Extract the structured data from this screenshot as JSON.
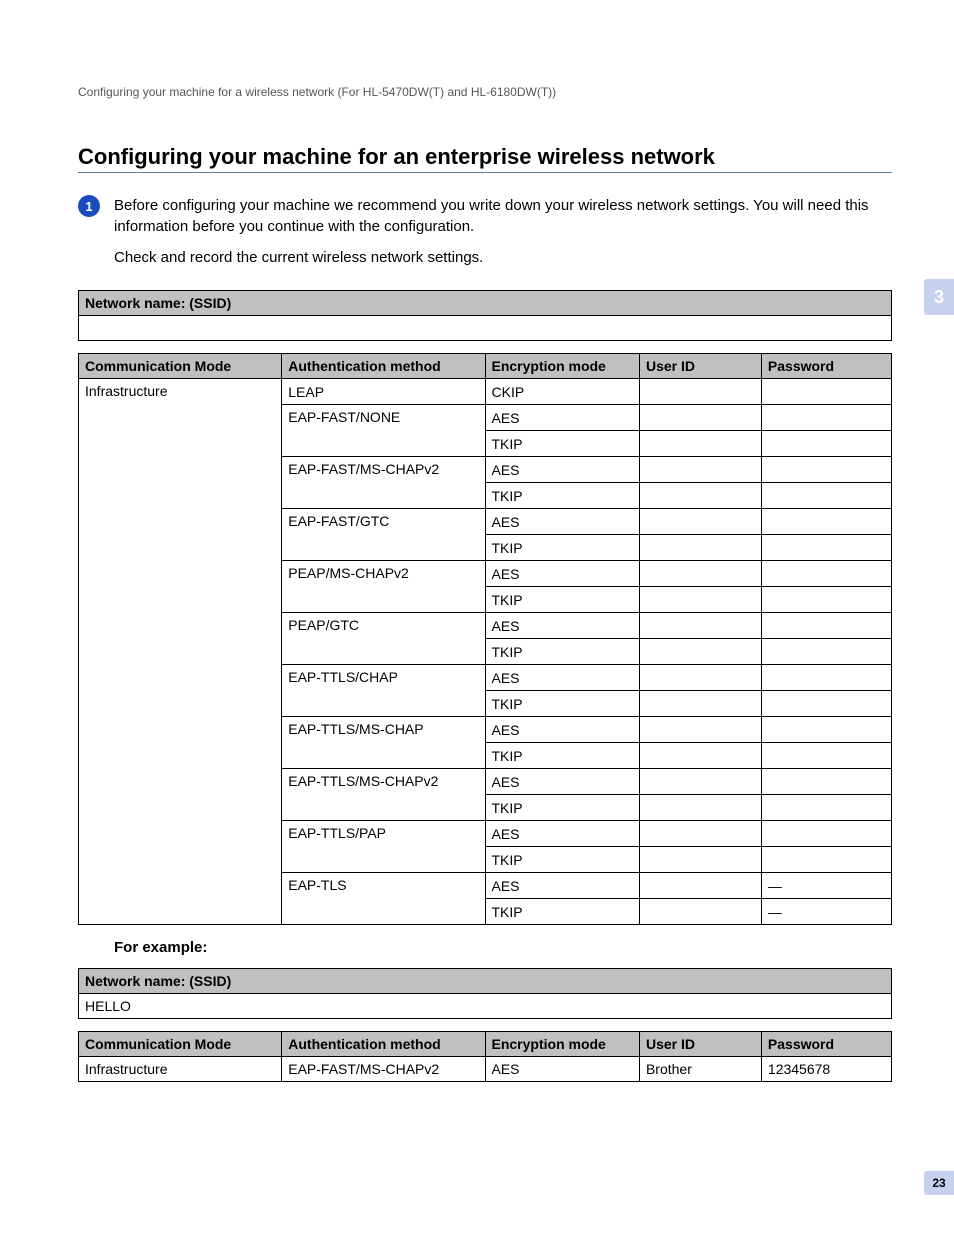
{
  "header_text": "Configuring your machine for a wireless network (For HL-5470DW(T) and HL-6180DW(T))",
  "heading": "Configuring your machine for an enterprise wireless network",
  "step_number": "1",
  "step_para1": "Before configuring your machine we recommend you write down your wireless network settings. You will need this information before you continue with the configuration.",
  "step_para2": "Check and record the current wireless network settings.",
  "ssid_label": "Network name: (SSID)",
  "cols": {
    "c1": "Communication Mode",
    "c2": "Authentication method",
    "c3": "Encryption mode",
    "c4": "User ID",
    "c5": "Password"
  },
  "comm_mode": "Infrastructure",
  "auth": {
    "leap": "LEAP",
    "eap_fast_none": "EAP-FAST/NONE",
    "eap_fast_mschapv2": "EAP-FAST/MS-CHAPv2",
    "eap_fast_gtc": "EAP-FAST/GTC",
    "peap_mschapv2": "PEAP/MS-CHAPv2",
    "peap_gtc": "PEAP/GTC",
    "eap_ttls_chap": "EAP-TTLS/CHAP",
    "eap_ttls_mschap": "EAP-TTLS/MS-CHAP",
    "eap_ttls_mschapv2": "EAP-TTLS/MS-CHAPv2",
    "eap_ttls_pap": "EAP-TTLS/PAP",
    "eap_tls": "EAP-TLS"
  },
  "enc": {
    "ckip": "CKIP",
    "aes": "AES",
    "tkip": "TKIP"
  },
  "dash": "—",
  "for_example": "For example:",
  "example": {
    "ssid_value": "HELLO",
    "comm": "Infrastructure",
    "auth": "EAP-FAST/MS-CHAPv2",
    "enc": "AES",
    "user": "Brother",
    "pass": "12345678"
  },
  "chapter_tab": "3",
  "page_number": "23",
  "widths": {
    "c1": "25%",
    "c2": "25%",
    "c3": "19%",
    "c4": "15%",
    "c5": "16%"
  }
}
